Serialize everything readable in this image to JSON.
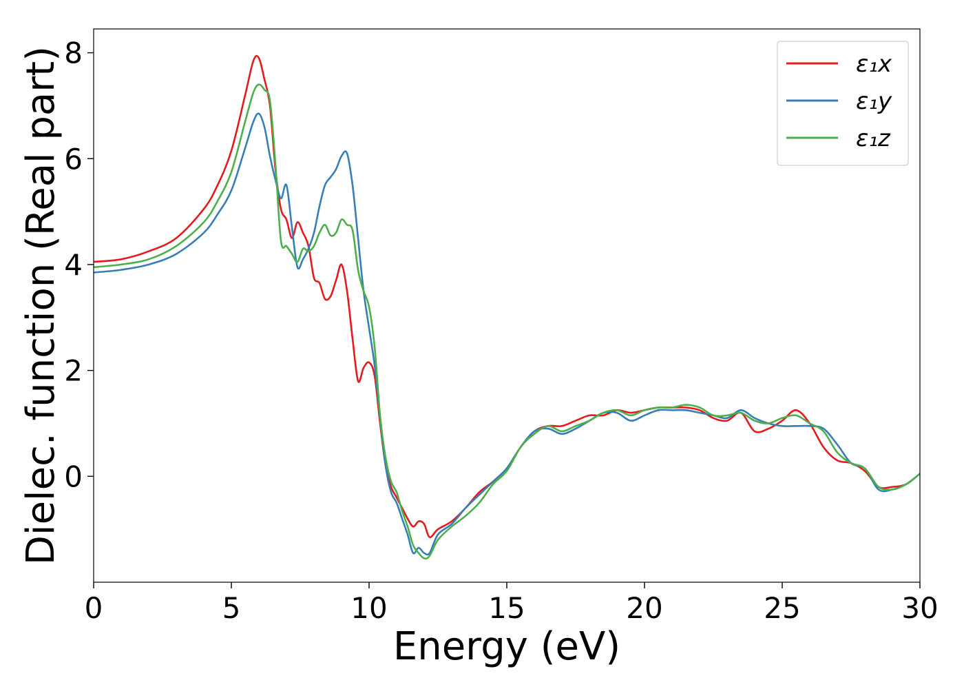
{
  "chart_data": {
    "type": "line",
    "title": "",
    "xlabel": "Energy (eV)",
    "ylabel": "Dielec. function (Real part)",
    "xlim": [
      0,
      30
    ],
    "ylim": [
      -2.0,
      8.45
    ],
    "xticks": [
      0,
      5,
      10,
      15,
      20,
      25,
      30
    ],
    "xtick_labels": [
      "0",
      "5",
      "10",
      "15",
      "20",
      "25",
      "30"
    ],
    "yticks": [
      0,
      2,
      4,
      6,
      8
    ],
    "ytick_labels": [
      "0",
      "2",
      "4",
      "6",
      "8"
    ],
    "grid": false,
    "legend_position": "top-right",
    "series": [
      {
        "name": "ε₁x",
        "color": "#e41a1c",
        "x": [
          0,
          1,
          2,
          3,
          4,
          4.5,
          5,
          5.5,
          5.8,
          6.0,
          6.2,
          6.4,
          6.6,
          6.8,
          7.0,
          7.2,
          7.4,
          7.6,
          7.8,
          8.0,
          8.2,
          8.4,
          8.6,
          8.8,
          9.0,
          9.2,
          9.4,
          9.6,
          9.8,
          10.0,
          10.2,
          10.4,
          10.6,
          10.8,
          11.0,
          11.2,
          11.4,
          11.6,
          11.8,
          12.0,
          12.2,
          12.5,
          13.0,
          13.5,
          14.0,
          14.5,
          15.0,
          15.5,
          16.0,
          16.5,
          17.0,
          17.5,
          18.0,
          18.5,
          19.0,
          19.5,
          20.0,
          20.5,
          21.0,
          21.5,
          22.0,
          22.5,
          23.0,
          23.5,
          24.0,
          24.5,
          25.0,
          25.5,
          26.0,
          26.5,
          27.0,
          27.5,
          28.0,
          28.5,
          29.0,
          29.5,
          30.0
        ],
        "y": [
          4.05,
          4.1,
          4.25,
          4.5,
          5.05,
          5.5,
          6.15,
          7.2,
          7.85,
          7.9,
          7.5,
          7.0,
          5.8,
          5.05,
          4.85,
          4.5,
          4.8,
          4.6,
          4.35,
          3.75,
          3.65,
          3.35,
          3.4,
          3.7,
          4.0,
          3.5,
          2.6,
          1.8,
          2.05,
          2.15,
          1.9,
          1.0,
          0.2,
          -0.2,
          -0.4,
          -0.6,
          -0.8,
          -0.95,
          -0.85,
          -0.9,
          -1.15,
          -1.0,
          -0.85,
          -0.6,
          -0.3,
          -0.1,
          0.15,
          0.55,
          0.85,
          0.95,
          0.95,
          1.05,
          1.15,
          1.15,
          1.25,
          1.2,
          1.25,
          1.3,
          1.3,
          1.3,
          1.25,
          1.1,
          1.05,
          1.2,
          0.85,
          0.9,
          1.05,
          1.25,
          1.0,
          0.55,
          0.3,
          0.25,
          0.1,
          -0.2,
          -0.2,
          -0.15,
          0.05
        ]
      },
      {
        "name": "ε₁y",
        "color": "#377eb8",
        "x": [
          0,
          1,
          2,
          3,
          4,
          4.5,
          5,
          5.5,
          5.8,
          6.0,
          6.2,
          6.4,
          6.6,
          6.8,
          7.0,
          7.2,
          7.4,
          7.6,
          7.8,
          8.0,
          8.2,
          8.4,
          8.6,
          8.8,
          9.0,
          9.2,
          9.4,
          9.6,
          9.8,
          10.0,
          10.2,
          10.4,
          10.6,
          10.8,
          11.0,
          11.2,
          11.4,
          11.6,
          11.8,
          12.0,
          12.2,
          12.5,
          13.0,
          13.5,
          14.0,
          14.5,
          15.0,
          15.5,
          16.0,
          16.5,
          17.0,
          17.5,
          18.0,
          18.5,
          19.0,
          19.5,
          20.0,
          20.5,
          21.0,
          21.5,
          22.0,
          22.5,
          23.0,
          23.5,
          24.0,
          24.5,
          25.0,
          25.5,
          26.0,
          26.5,
          27.0,
          27.5,
          28.0,
          28.5,
          29.0,
          29.5,
          30.0
        ],
        "y": [
          3.85,
          3.9,
          4.0,
          4.2,
          4.6,
          4.95,
          5.4,
          6.2,
          6.7,
          6.85,
          6.6,
          6.05,
          5.6,
          5.25,
          5.5,
          4.7,
          3.95,
          4.1,
          4.3,
          4.6,
          5.1,
          5.5,
          5.65,
          5.8,
          6.05,
          6.1,
          5.5,
          4.5,
          3.5,
          2.8,
          2.1,
          1.1,
          0.2,
          -0.3,
          -0.5,
          -0.8,
          -1.1,
          -1.45,
          -1.35,
          -1.45,
          -1.45,
          -1.1,
          -0.9,
          -0.6,
          -0.35,
          -0.1,
          0.15,
          0.55,
          0.85,
          0.9,
          0.8,
          0.9,
          1.05,
          1.2,
          1.2,
          1.05,
          1.15,
          1.25,
          1.25,
          1.25,
          1.2,
          1.15,
          1.1,
          1.25,
          1.1,
          1.0,
          0.95,
          0.95,
          0.95,
          0.9,
          0.6,
          0.25,
          0.15,
          -0.25,
          -0.25,
          -0.15,
          0.05
        ]
      },
      {
        "name": "ε₁z",
        "color": "#4daf4a",
        "x": [
          0,
          1,
          2,
          3,
          4,
          4.5,
          5,
          5.5,
          5.8,
          6.0,
          6.2,
          6.4,
          6.6,
          6.8,
          7.0,
          7.2,
          7.4,
          7.6,
          7.8,
          8.0,
          8.2,
          8.4,
          8.6,
          8.8,
          9.0,
          9.2,
          9.4,
          9.6,
          9.8,
          10.0,
          10.2,
          10.4,
          10.6,
          10.8,
          11.0,
          11.2,
          11.4,
          11.6,
          11.8,
          12.0,
          12.2,
          12.5,
          13.0,
          13.5,
          14.0,
          14.5,
          15.0,
          15.5,
          16.0,
          16.5,
          17.0,
          17.5,
          18.0,
          18.5,
          19.0,
          19.5,
          20.0,
          20.5,
          21.0,
          21.5,
          22.0,
          22.5,
          23.0,
          23.5,
          24.0,
          24.5,
          25.0,
          25.5,
          26.0,
          26.5,
          27.0,
          27.5,
          28.0,
          28.5,
          29.0,
          29.5,
          30.0
        ],
        "y": [
          3.95,
          4.0,
          4.1,
          4.35,
          4.8,
          5.2,
          5.75,
          6.7,
          7.25,
          7.4,
          7.3,
          7.1,
          5.9,
          4.45,
          4.35,
          4.2,
          4.05,
          4.3,
          4.25,
          4.35,
          4.6,
          4.75,
          4.55,
          4.6,
          4.85,
          4.75,
          4.65,
          3.9,
          3.5,
          3.2,
          2.45,
          1.15,
          0.35,
          -0.1,
          -0.3,
          -0.65,
          -0.95,
          -1.3,
          -1.45,
          -1.55,
          -1.5,
          -1.2,
          -0.95,
          -0.75,
          -0.5,
          -0.15,
          0.1,
          0.55,
          0.8,
          0.95,
          0.85,
          0.95,
          1.05,
          1.2,
          1.25,
          1.15,
          1.25,
          1.3,
          1.3,
          1.35,
          1.3,
          1.15,
          1.15,
          1.2,
          1.05,
          1.0,
          1.1,
          1.15,
          1.0,
          0.85,
          0.45,
          0.25,
          0.15,
          -0.2,
          -0.25,
          -0.15,
          0.05
        ]
      }
    ]
  }
}
